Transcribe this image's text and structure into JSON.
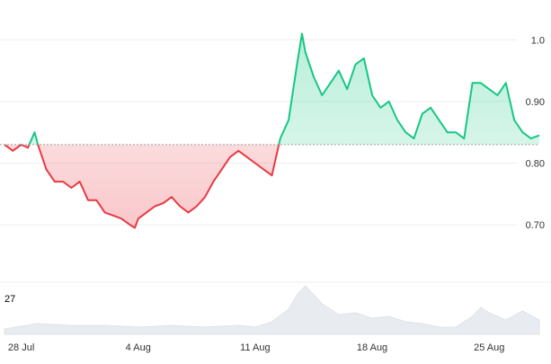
{
  "chart_data": {
    "type": "area",
    "baseline": 0.83,
    "ylim": [
      0.62,
      1.05
    ],
    "yticks": [
      "1.0",
      "0.90",
      "0.80",
      "0.70"
    ],
    "ytick_values": [
      1.0,
      0.9,
      0.8,
      0.7
    ],
    "xlim": [
      0,
      32
    ],
    "xticks": [
      "28 Jul",
      "4 Aug",
      "11 Aug",
      "18 Aug",
      "25 Aug"
    ],
    "xtick_values": [
      1,
      8,
      15,
      22,
      29
    ],
    "colors": {
      "up": "#16c784",
      "down": "#ea3943",
      "grid": "#eeeeee",
      "baseline": "#9e9e9e",
      "volume": "#e8ebef"
    },
    "series": [
      {
        "x": [
          0,
          0.5,
          1,
          1.4,
          1.8,
          2.0,
          2.5,
          3.0,
          3.5,
          4.0,
          4.5,
          5.0,
          5.5,
          6.0,
          6.5,
          7.0,
          7.5,
          7.8,
          8.0,
          8.5,
          9.0,
          9.5,
          10.0,
          10.5,
          11.0,
          11.5,
          12.0,
          12.5,
          13.0,
          13.5,
          14.0,
          14.5,
          15.0,
          15.5,
          16.0,
          16.5,
          17.0,
          17.5,
          17.8,
          18.0,
          18.5,
          19.0,
          19.5,
          20.0,
          20.5,
          21.0,
          21.5,
          22.0,
          22.5,
          23.0,
          23.5,
          24.0,
          24.5,
          25.0,
          25.5,
          26.0,
          26.5,
          27.0,
          27.5,
          28.0,
          28.5,
          29.0,
          29.5,
          30.0,
          30.5,
          31.0,
          31.5,
          32.0
        ],
        "values": [
          0.83,
          0.82,
          0.83,
          0.825,
          0.85,
          0.83,
          0.79,
          0.77,
          0.77,
          0.76,
          0.77,
          0.74,
          0.74,
          0.72,
          0.715,
          0.71,
          0.7,
          0.695,
          0.71,
          0.72,
          0.73,
          0.735,
          0.745,
          0.73,
          0.72,
          0.73,
          0.745,
          0.77,
          0.79,
          0.81,
          0.82,
          0.81,
          0.8,
          0.79,
          0.78,
          0.84,
          0.87,
          0.96,
          1.01,
          0.98,
          0.94,
          0.91,
          0.93,
          0.95,
          0.92,
          0.96,
          0.97,
          0.91,
          0.89,
          0.9,
          0.87,
          0.85,
          0.84,
          0.88,
          0.89,
          0.87,
          0.85,
          0.85,
          0.84,
          0.93,
          0.93,
          0.92,
          0.91,
          0.93,
          0.87,
          0.85,
          0.84,
          0.845
        ]
      }
    ],
    "volume": {
      "max_label": "27",
      "x": [
        0,
        2,
        4,
        6,
        8,
        10,
        12,
        14,
        15,
        16,
        17,
        17.5,
        18,
        19,
        20,
        21,
        22,
        23,
        24,
        25,
        26,
        27,
        28,
        28.5,
        29,
        30,
        31,
        32
      ],
      "values": [
        3,
        6,
        5,
        5,
        4,
        5,
        4,
        5,
        4,
        7,
        14,
        22,
        27,
        17,
        11,
        12,
        9,
        10,
        7,
        6,
        4,
        4,
        10,
        15,
        12,
        8,
        13,
        8
      ]
    }
  }
}
